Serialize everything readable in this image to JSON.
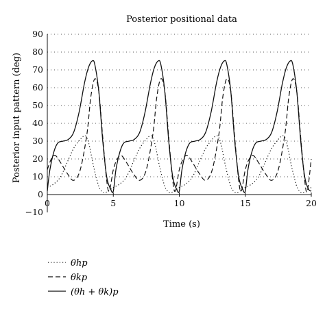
{
  "chart_data": {
    "type": "line",
    "title": "Posterior positional data",
    "xlabel": "Time (s)",
    "ylabel": "Posterior input pattern (deg)",
    "xlim": [
      0,
      20
    ],
    "ylim": [
      -10,
      90
    ],
    "x_ticks": [
      "0",
      "5",
      "10",
      "15",
      "20"
    ],
    "y_ticks": [
      "−10",
      "0",
      "10",
      "20",
      "30",
      "40",
      "50",
      "60",
      "70",
      "80",
      "90"
    ],
    "grid": "dotted horizontal",
    "legend_position": "below",
    "series": [
      {
        "name": "θhp",
        "style": "dotted",
        "x": [
          0.0,
          0.5,
          1.0,
          1.5,
          2.0,
          2.5,
          2.8,
          3.0,
          3.2,
          3.5,
          3.8,
          4.0,
          4.3,
          4.6,
          4.8,
          5.0,
          5.5,
          6.0,
          6.5,
          7.0,
          7.5,
          7.8,
          8.0,
          8.2,
          8.5,
          8.8,
          9.0,
          9.3,
          9.6,
          9.8,
          10.0,
          10.5,
          11.0,
          11.5,
          12.0,
          12.5,
          12.8,
          13.0,
          13.2,
          13.5,
          13.8,
          14.0,
          14.3,
          14.6,
          14.8,
          15.0,
          15.5,
          16.0,
          16.5,
          17.0,
          17.5,
          17.8,
          18.0,
          18.2,
          18.5,
          18.8,
          19.0,
          19.3,
          19.6,
          19.8,
          20.0
        ],
        "y": [
          4,
          6,
          10,
          18,
          26,
          31,
          33,
          32,
          27,
          16,
          7,
          3,
          1,
          2,
          3,
          4,
          6,
          10,
          18,
          26,
          31,
          33,
          32,
          27,
          16,
          7,
          3,
          1,
          2,
          3,
          4,
          6,
          10,
          18,
          26,
          31,
          33,
          32,
          27,
          16,
          7,
          3,
          1,
          2,
          3,
          4,
          6,
          10,
          18,
          26,
          31,
          33,
          32,
          27,
          16,
          7,
          3,
          1,
          2,
          3,
          4
        ]
      },
      {
        "name": "θkp",
        "style": "dashed",
        "x": [
          0.0,
          0.3,
          0.6,
          1.0,
          1.5,
          2.0,
          2.5,
          3.0,
          3.3,
          3.6,
          3.9,
          4.2,
          4.5,
          4.7,
          5.0,
          5.3,
          5.6,
          6.0,
          6.5,
          7.0,
          7.5,
          8.0,
          8.3,
          8.6,
          8.9,
          9.2,
          9.5,
          9.7,
          10.0,
          10.3,
          10.6,
          11.0,
          11.5,
          12.0,
          12.5,
          13.0,
          13.3,
          13.6,
          13.9,
          14.2,
          14.5,
          14.7,
          15.0,
          15.3,
          15.6,
          16.0,
          16.5,
          17.0,
          17.5,
          18.0,
          18.3,
          18.6,
          18.9,
          19.2,
          19.5,
          19.7,
          20.0
        ],
        "y": [
          14,
          20,
          22,
          18,
          12,
          8,
          14,
          34,
          55,
          65,
          58,
          32,
          8,
          2,
          14,
          20,
          22,
          18,
          12,
          8,
          14,
          34,
          55,
          65,
          58,
          32,
          8,
          2,
          14,
          20,
          22,
          18,
          12,
          8,
          14,
          34,
          55,
          65,
          58,
          32,
          8,
          2,
          14,
          20,
          22,
          18,
          12,
          8,
          14,
          34,
          55,
          65,
          58,
          32,
          8,
          2,
          20
        ]
      },
      {
        "name": "(θh + θk)p",
        "style": "solid",
        "x": [
          0.0,
          0.2,
          0.5,
          0.8,
          1.2,
          1.6,
          2.0,
          2.4,
          2.8,
          3.1,
          3.4,
          3.6,
          3.9,
          4.2,
          4.5,
          4.8,
          5.0,
          5.2,
          5.5,
          5.8,
          6.2,
          6.6,
          7.0,
          7.4,
          7.8,
          8.1,
          8.4,
          8.6,
          8.9,
          9.2,
          9.5,
          9.8,
          10.0,
          10.2,
          10.5,
          10.8,
          11.2,
          11.6,
          12.0,
          12.4,
          12.8,
          13.1,
          13.4,
          13.6,
          13.9,
          14.2,
          14.5,
          14.8,
          15.0,
          15.2,
          15.5,
          15.8,
          16.2,
          16.6,
          17.0,
          17.4,
          17.8,
          18.1,
          18.4,
          18.6,
          18.9,
          19.2,
          19.5,
          19.8,
          20.0
        ],
        "y": [
          2,
          14,
          24,
          29,
          30,
          31,
          35,
          46,
          62,
          71,
          75,
          73,
          58,
          30,
          10,
          3,
          2,
          14,
          24,
          29,
          30,
          31,
          35,
          46,
          62,
          71,
          75,
          73,
          58,
          30,
          10,
          3,
          2,
          14,
          24,
          29,
          30,
          31,
          35,
          46,
          62,
          71,
          75,
          73,
          58,
          30,
          10,
          3,
          2,
          14,
          24,
          29,
          30,
          31,
          35,
          46,
          62,
          71,
          75,
          73,
          58,
          30,
          10,
          3,
          2
        ]
      }
    ]
  }
}
